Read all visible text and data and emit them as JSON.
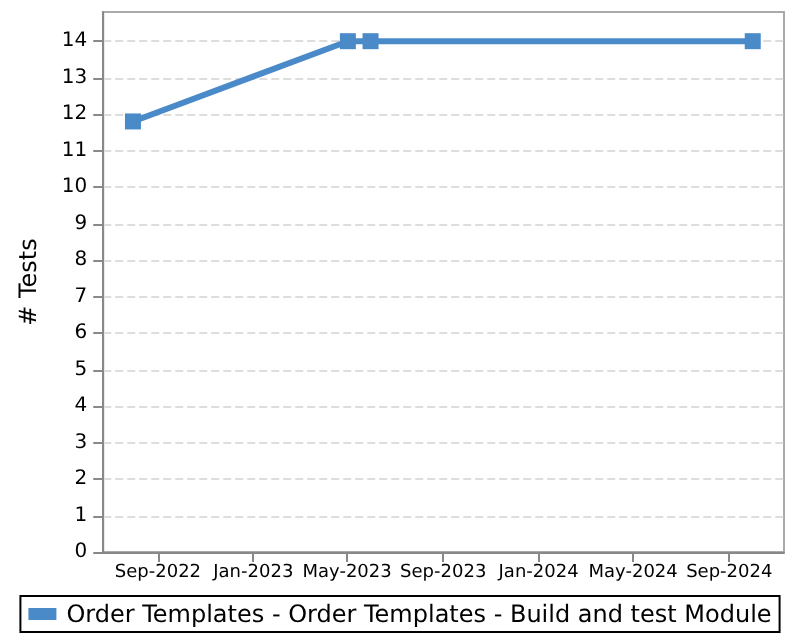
{
  "chart_data": {
    "type": "line",
    "ylabel": "# Tests",
    "x": [
      "2022-07-31",
      "2023-05-02",
      "2023-05-31",
      "2024-10-01"
    ],
    "series": [
      {
        "name": "Order Templates - Order Templates - Build and test Module",
        "color": "#4a8ac9",
        "values": [
          11.8,
          14,
          14,
          14
        ]
      }
    ],
    "xlim": [
      "2022-06-23",
      "2024-11-10"
    ],
    "xticks": [
      {
        "value": "2022-09-01",
        "label": "Sep-2022"
      },
      {
        "value": "2023-01-01",
        "label": "Jan-2023"
      },
      {
        "value": "2023-05-01",
        "label": "May-2023"
      },
      {
        "value": "2023-09-01",
        "label": "Sep-2023"
      },
      {
        "value": "2024-01-01",
        "label": "Jan-2024"
      },
      {
        "value": "2024-05-01",
        "label": "May-2024"
      },
      {
        "value": "2024-09-01",
        "label": "Sep-2024"
      }
    ],
    "ylim": [
      0,
      14.8
    ],
    "yticks": [
      0,
      1,
      2,
      3,
      4,
      5,
      6,
      7,
      8,
      9,
      10,
      11,
      12,
      13,
      14
    ],
    "grid": "y",
    "legend": "bottom",
    "marker": "square",
    "line_style": "solid"
  }
}
